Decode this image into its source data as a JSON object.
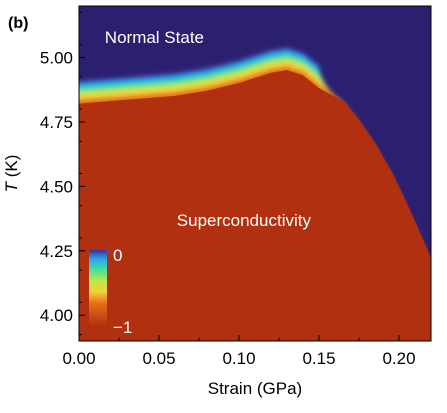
{
  "chart_data": {
    "type": "heatmap",
    "panel_label": "(b)",
    "xlabel": "Strain (GPa)",
    "ylabel_italic": "T",
    "ylabel_unit": " (K)",
    "xlim": [
      0.0,
      0.22
    ],
    "ylim": [
      3.9,
      5.2
    ],
    "x_ticks": [
      {
        "value": 0.0,
        "label": "0.00"
      },
      {
        "value": 0.05,
        "label": "0.05"
      },
      {
        "value": 0.1,
        "label": "0.10"
      },
      {
        "value": 0.15,
        "label": "0.15"
      },
      {
        "value": 0.2,
        "label": "0.20"
      }
    ],
    "y_ticks": [
      {
        "value": 4.0,
        "label": "4.00"
      },
      {
        "value": 4.25,
        "label": "4.25"
      },
      {
        "value": 4.5,
        "label": "4.50"
      },
      {
        "value": 4.75,
        "label": "4.75"
      },
      {
        "value": 5.0,
        "label": "5.00"
      }
    ],
    "annotations": [
      {
        "text": "Normal State",
        "x": 0.013,
        "y": 5.08
      },
      {
        "text": "Superconductivity",
        "x": 0.058,
        "y": 4.37
      }
    ],
    "colorbar": {
      "min_label": "−1",
      "max_label": "0",
      "min": -1,
      "max": 0
    },
    "transition_boundary": {
      "strain": [
        0.0,
        0.02,
        0.04,
        0.06,
        0.08,
        0.1,
        0.12,
        0.13,
        0.14,
        0.15,
        0.16,
        0.17,
        0.18,
        0.19,
        0.2,
        0.21,
        0.22
      ],
      "Tc": [
        4.86,
        4.87,
        4.88,
        4.89,
        4.91,
        4.94,
        4.98,
        4.99,
        4.97,
        4.92,
        4.85,
        4.77,
        4.68,
        4.57,
        4.44,
        4.3,
        4.15
      ]
    },
    "colors": {
      "normal": "#2b2070",
      "superconducting": "#b03010"
    }
  }
}
